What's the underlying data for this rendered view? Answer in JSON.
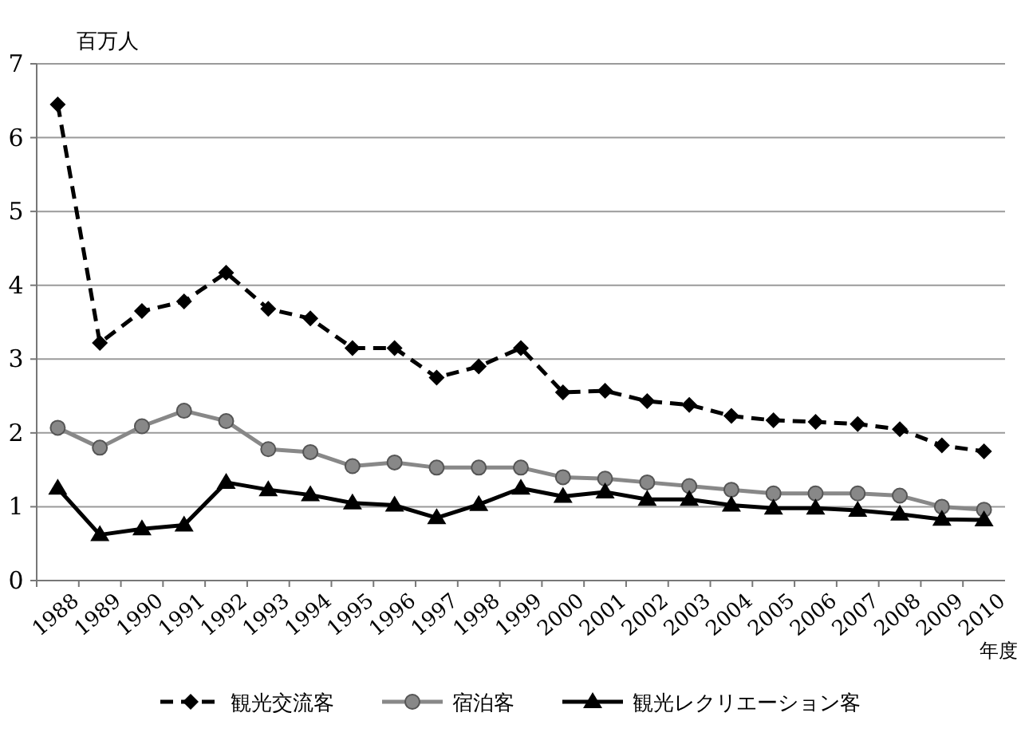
{
  "chart_data": {
    "type": "line",
    "ylabel": "百万人",
    "xlabel": "年度",
    "categories": [
      "1988",
      "1989",
      "1990",
      "1991",
      "1992",
      "1993",
      "1994",
      "1995",
      "1996",
      "1997",
      "1998",
      "1999",
      "2000",
      "2001",
      "2002",
      "2003",
      "2004",
      "2005",
      "2006",
      "2007",
      "2008",
      "2009",
      "2010"
    ],
    "ylim": [
      0,
      7
    ],
    "yticks": [
      0,
      1,
      2,
      3,
      4,
      5,
      6,
      7
    ],
    "grid": "y",
    "legend": "bottom",
    "series": [
      {
        "name": "観光交流客",
        "color": "#000000",
        "marker": "diamond",
        "line_style": "dashed",
        "values": [
          6.45,
          3.22,
          3.65,
          3.78,
          4.17,
          3.68,
          3.55,
          3.15,
          3.15,
          2.75,
          2.9,
          3.15,
          2.55,
          2.57,
          2.43,
          2.38,
          2.23,
          2.17,
          2.15,
          2.12,
          2.05,
          1.83,
          1.75
        ]
      },
      {
        "name": "宿泊客",
        "color": "#888888",
        "marker": "circle",
        "line_style": "solid",
        "values": [
          2.07,
          1.8,
          2.09,
          2.3,
          2.16,
          1.78,
          1.74,
          1.55,
          1.6,
          1.53,
          1.53,
          1.53,
          1.4,
          1.38,
          1.33,
          1.28,
          1.23,
          1.18,
          1.18,
          1.18,
          1.15,
          1.0,
          0.96
        ]
      },
      {
        "name": "観光レクリエーション客",
        "color": "#000000",
        "marker": "triangle",
        "line_style": "solid",
        "values": [
          1.25,
          0.62,
          0.7,
          0.75,
          1.33,
          1.23,
          1.16,
          1.05,
          1.02,
          0.85,
          1.03,
          1.25,
          1.14,
          1.2,
          1.1,
          1.1,
          1.02,
          0.98,
          0.98,
          0.95,
          0.9,
          0.83,
          0.82
        ]
      }
    ]
  }
}
